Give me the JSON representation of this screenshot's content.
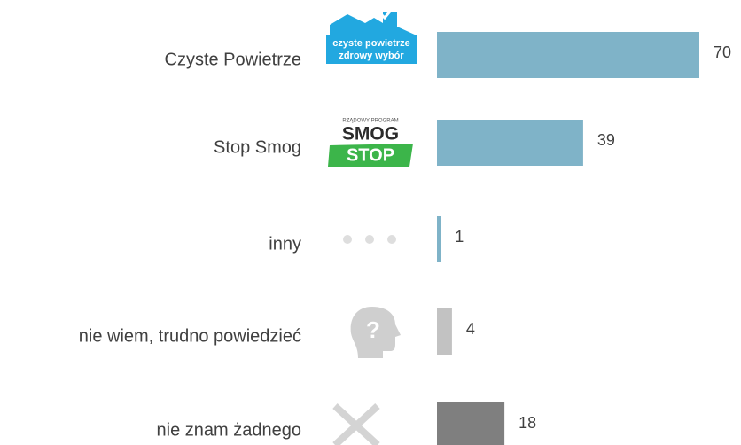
{
  "chart_data": {
    "type": "bar",
    "orientation": "horizontal",
    "categories": [
      "Czyste Powietrze",
      "Stop Smog",
      "inny",
      "nie wiem, trudno powiedzieć",
      "nie znam żadnego"
    ],
    "values": [
      70,
      39,
      1,
      4,
      18
    ],
    "colors": [
      "#7fb3c8",
      "#7fb3c8",
      "#7fb3c8",
      "#c2c2c2",
      "#7f7f7f"
    ],
    "logos": [
      [
        "czyste powietrze",
        "zdrowy wybór"
      ],
      [
        "RZĄDOWY PROGRAM",
        "SMOG",
        "STOP"
      ]
    ]
  }
}
